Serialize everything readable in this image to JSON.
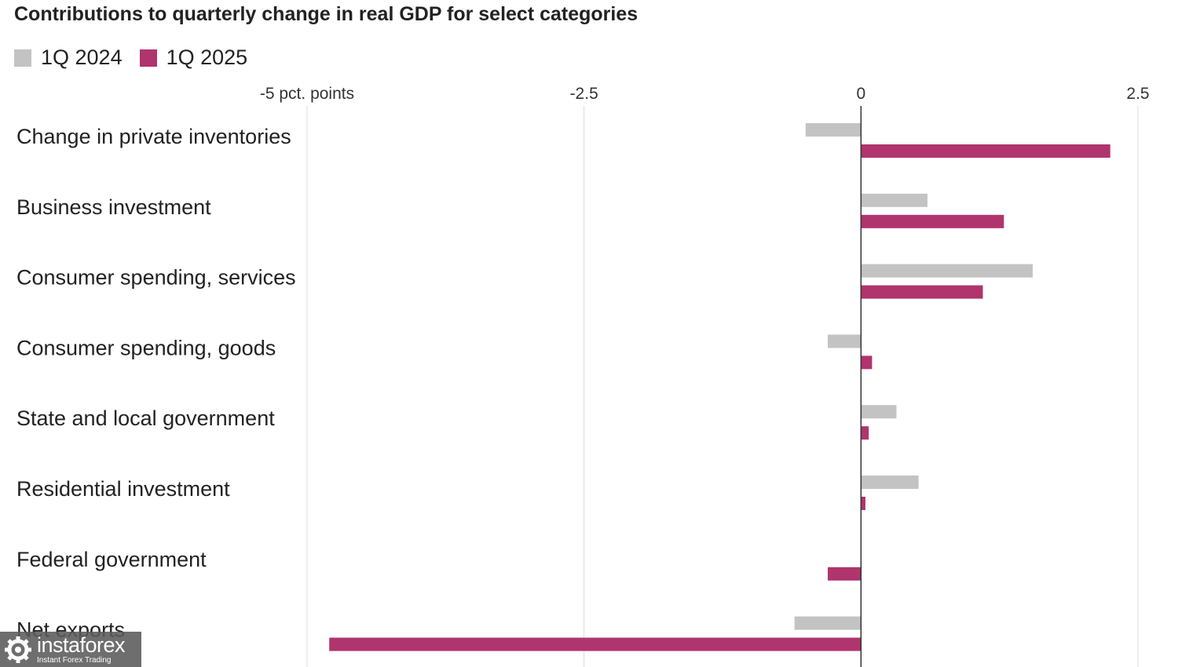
{
  "chart_data": {
    "type": "bar",
    "orientation": "horizontal",
    "title": "Contributions to quarterly change in real GDP for select categories",
    "categories": [
      "Change in private inventories",
      "Business investment",
      "Consumer spending, services",
      "Consumer spending, goods",
      "State and local government",
      "Residential investment",
      "Federal government",
      "Net exports"
    ],
    "series": [
      {
        "name": "1Q 2024",
        "color": "#c3c3c3",
        "values": [
          -0.5,
          0.6,
          1.55,
          -0.3,
          0.32,
          0.52,
          0.0,
          -0.6
        ]
      },
      {
        "name": "1Q 2025",
        "color": "#b0346e",
        "values": [
          2.25,
          1.29,
          1.1,
          0.1,
          0.07,
          0.04,
          -0.3,
          -4.8
        ]
      }
    ],
    "xlim": [
      -5,
      2.5
    ],
    "ticks": [
      {
        "value": -5,
        "label": "-5 pct. points"
      },
      {
        "value": -2.5,
        "label": "-2.5"
      },
      {
        "value": 0,
        "label": "0"
      },
      {
        "value": 2.5,
        "label": "2.5"
      }
    ],
    "grid": true,
    "legend_position": "top-left"
  },
  "watermark": {
    "name": "instaforex",
    "tagline": "Instant Forex Trading",
    "icon": "gear-icon"
  }
}
